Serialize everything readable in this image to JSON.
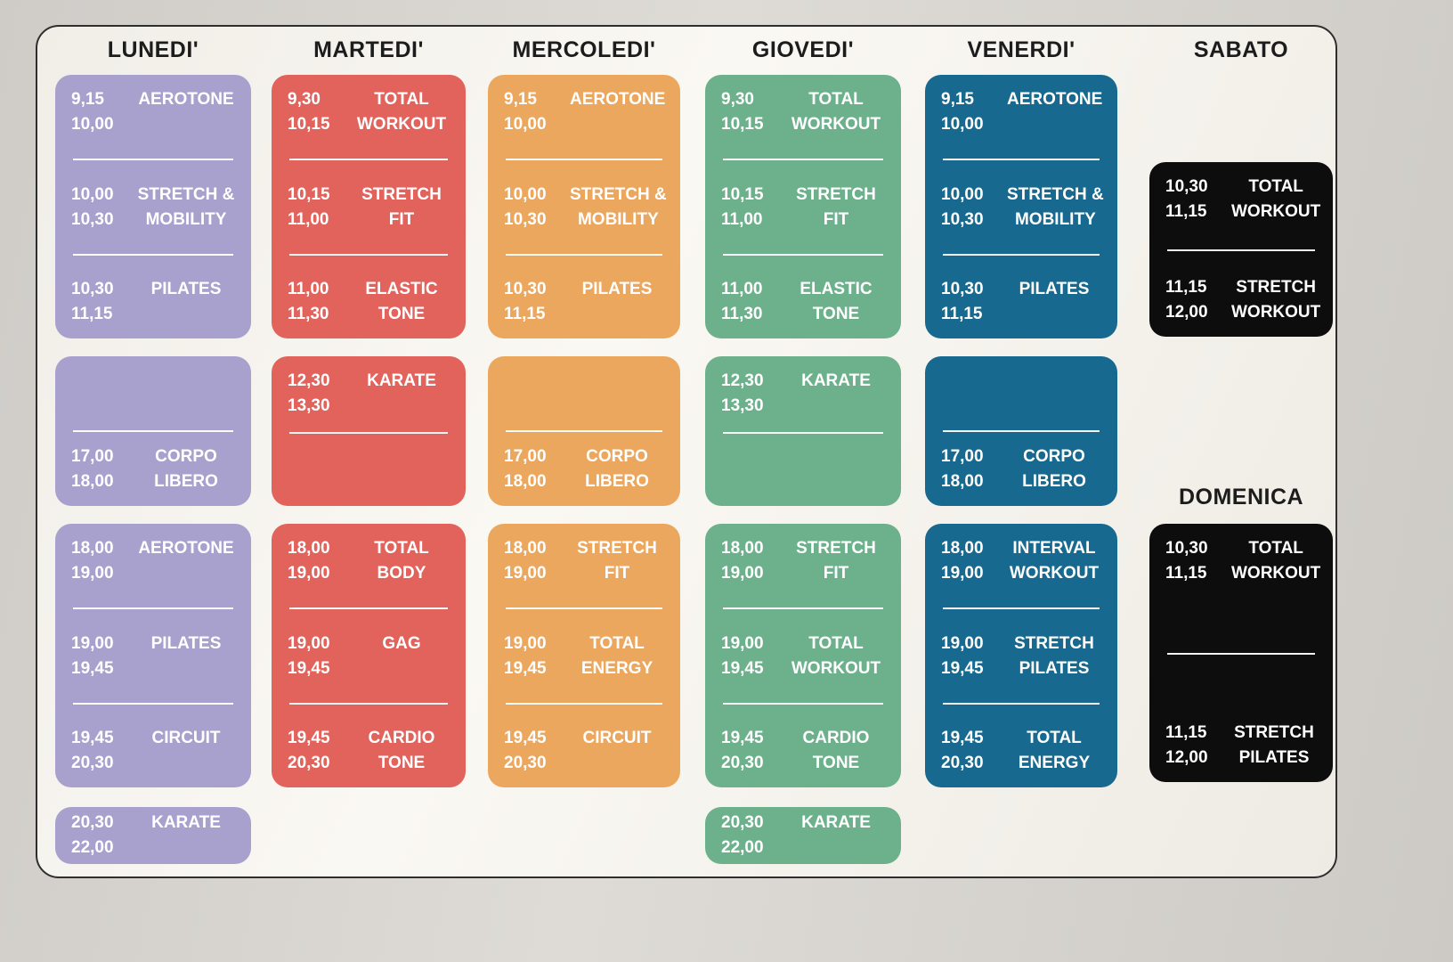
{
  "board": {
    "background": "#f6f3ee",
    "border_color": "#2e2e2e",
    "page_background": "#d6d3cf"
  },
  "columns": [
    {
      "day": "LUNEDI'",
      "col": 0,
      "header_pos": "top",
      "color": "#a8a0cd",
      "cards": [
        {
          "row": "morning",
          "slots": [
            {
              "t1": "9,15",
              "a1": "AEROTONE",
              "t2": "10,00",
              "a2": ""
            },
            {
              "t1": "10,00",
              "a1": "STRETCH &",
              "t2": "10,30",
              "a2": "MOBILITY"
            },
            {
              "t1": "10,30",
              "a1": "PILATES",
              "t2": "11,15",
              "a2": ""
            }
          ]
        },
        {
          "row": "midday",
          "slots": [
            {
              "blank": true
            },
            {
              "t1": "17,00",
              "a1": "CORPO",
              "t2": "18,00",
              "a2": "LIBERO"
            }
          ]
        },
        {
          "row": "evening",
          "slots": [
            {
              "t1": "18,00",
              "a1": "AEROTONE",
              "t2": "19,00",
              "a2": ""
            },
            {
              "t1": "19,00",
              "a1": "PILATES",
              "t2": "19,45",
              "a2": ""
            },
            {
              "t1": "19,45",
              "a1": "CIRCUIT",
              "t2": "20,30",
              "a2": ""
            }
          ]
        },
        {
          "row": "late",
          "slots": [
            {
              "t1": "20,30",
              "a1": "KARATE",
              "t2": "22,00",
              "a2": ""
            }
          ]
        }
      ]
    },
    {
      "day": "MARTEDI'",
      "col": 1,
      "header_pos": "top",
      "color": "#e2625c",
      "cards": [
        {
          "row": "morning",
          "slots": [
            {
              "t1": "9,30",
              "a1": "TOTAL",
              "t2": "10,15",
              "a2": "WORKOUT"
            },
            {
              "t1": "10,15",
              "a1": "STRETCH",
              "t2": "11,00",
              "a2": "FIT"
            },
            {
              "t1": "11,00",
              "a1": "ELASTIC",
              "t2": "11,30",
              "a2": "TONE"
            }
          ]
        },
        {
          "row": "midday",
          "slots": [
            {
              "t1": "12,30",
              "a1": "KARATE",
              "t2": "13,30",
              "a2": ""
            },
            {
              "blank": true
            }
          ]
        },
        {
          "row": "evening",
          "slots": [
            {
              "t1": "18,00",
              "a1": "TOTAL",
              "t2": "19,00",
              "a2": "BODY"
            },
            {
              "t1": "19,00",
              "a1": "GAG",
              "t2": "19,45",
              "a2": ""
            },
            {
              "t1": "19,45",
              "a1": "CARDIO",
              "t2": "20,30",
              "a2": "TONE"
            }
          ]
        }
      ]
    },
    {
      "day": "MERCOLEDI'",
      "col": 2,
      "header_pos": "top",
      "color": "#ebA75e",
      "cards": [
        {
          "row": "morning",
          "slots": [
            {
              "t1": "9,15",
              "a1": "AEROTONE",
              "t2": "10,00",
              "a2": ""
            },
            {
              "t1": "10,00",
              "a1": "STRETCH &",
              "t2": "10,30",
              "a2": "MOBILITY"
            },
            {
              "t1": "10,30",
              "a1": "PILATES",
              "t2": "11,15",
              "a2": ""
            }
          ]
        },
        {
          "row": "midday",
          "slots": [
            {
              "blank": true
            },
            {
              "t1": "17,00",
              "a1": "CORPO",
              "t2": "18,00",
              "a2": "LIBERO"
            }
          ]
        },
        {
          "row": "evening",
          "slots": [
            {
              "t1": "18,00",
              "a1": "STRETCH",
              "t2": "19,00",
              "a2": "FIT"
            },
            {
              "t1": "19,00",
              "a1": "TOTAL",
              "t2": "19,45",
              "a2": "ENERGY"
            },
            {
              "t1": "19,45",
              "a1": "CIRCUIT",
              "t2": "20,30",
              "a2": ""
            }
          ]
        }
      ]
    },
    {
      "day": "GIOVEDI'",
      "col": 3,
      "header_pos": "top",
      "color": "#6db18c",
      "cards": [
        {
          "row": "morning",
          "slots": [
            {
              "t1": "9,30",
              "a1": "TOTAL",
              "t2": "10,15",
              "a2": "WORKOUT"
            },
            {
              "t1": "10,15",
              "a1": "STRETCH",
              "t2": "11,00",
              "a2": "FIT"
            },
            {
              "t1": "11,00",
              "a1": "ELASTIC",
              "t2": "11,30",
              "a2": "TONE"
            }
          ]
        },
        {
          "row": "midday",
          "slots": [
            {
              "t1": "12,30",
              "a1": "KARATE",
              "t2": "13,30",
              "a2": ""
            },
            {
              "blank": true
            }
          ]
        },
        {
          "row": "evening",
          "slots": [
            {
              "t1": "18,00",
              "a1": "STRETCH",
              "t2": "19,00",
              "a2": "FIT"
            },
            {
              "t1": "19,00",
              "a1": "TOTAL",
              "t2": "19,45",
              "a2": "WORKOUT"
            },
            {
              "t1": "19,45",
              "a1": "CARDIO",
              "t2": "20,30",
              "a2": "TONE"
            }
          ]
        },
        {
          "row": "late",
          "slots": [
            {
              "t1": "20,30",
              "a1": "KARATE",
              "t2": "22,00",
              "a2": ""
            }
          ]
        }
      ]
    },
    {
      "day": "VENERDI'",
      "col": 4,
      "header_pos": "top",
      "color": "#17698f",
      "cards": [
        {
          "row": "morning",
          "slots": [
            {
              "t1": "9,15",
              "a1": "AEROTONE",
              "t2": "10,00",
              "a2": ""
            },
            {
              "t1": "10,00",
              "a1": "STRETCH &",
              "t2": "10,30",
              "a2": "MOBILITY"
            },
            {
              "t1": "10,30",
              "a1": "PILATES",
              "t2": "11,15",
              "a2": ""
            }
          ]
        },
        {
          "row": "midday",
          "slots": [
            {
              "blank": true
            },
            {
              "t1": "17,00",
              "a1": "CORPO",
              "t2": "18,00",
              "a2": "LIBERO"
            }
          ]
        },
        {
          "row": "evening",
          "slots": [
            {
              "t1": "18,00",
              "a1": "INTERVAL",
              "t2": "19,00",
              "a2": "WORKOUT"
            },
            {
              "t1": "19,00",
              "a1": "STRETCH",
              "t2": "19,45",
              "a2": "PILATES"
            },
            {
              "t1": "19,45",
              "a1": "TOTAL",
              "t2": "20,30",
              "a2": "ENERGY"
            }
          ]
        }
      ]
    },
    {
      "day": "SABATO",
      "col": 5,
      "header_pos": "top",
      "color": "#0d0d0d",
      "cards": [
        {
          "row": "sabato",
          "slots": [
            {
              "t1": "10,30",
              "a1": "TOTAL",
              "t2": "11,15",
              "a2": "WORKOUT"
            },
            {
              "t1": "11,15",
              "a1": "STRETCH",
              "t2": "12,00",
              "a2": "WORKOUT"
            }
          ]
        }
      ]
    },
    {
      "day": "DOMENICA",
      "col": 5,
      "header_pos": "mid",
      "color": "#0d0d0d",
      "cards": [
        {
          "row": "domenica",
          "slots": [
            {
              "t1": "10,30",
              "a1": "TOTAL",
              "t2": "11,15",
              "a2": "WORKOUT"
            },
            {
              "t1": "11,15",
              "a1": "STRETCH",
              "t2": "12,00",
              "a2": "PILATES"
            }
          ]
        }
      ]
    }
  ]
}
